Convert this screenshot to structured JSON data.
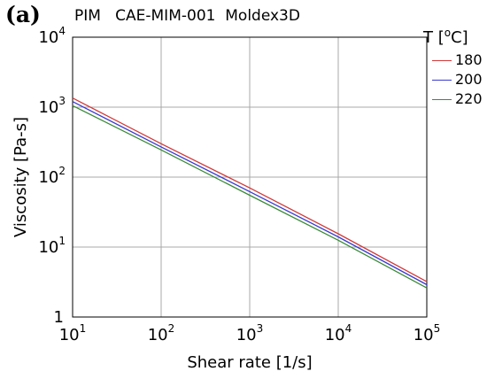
{
  "panel_label": "(a)",
  "chart_title": "PIM   CAE-MIM-001  Moldex3D",
  "chart_data": {
    "type": "line",
    "title": "PIM   CAE-MIM-001  Moldex3D",
    "xlabel": "Shear rate [1/s]",
    "ylabel": "Viscosity [Pa-s]",
    "xscale": "log",
    "yscale": "log",
    "xlim": [
      10,
      100000
    ],
    "ylim": [
      1,
      10000
    ],
    "grid": true,
    "legend_position": "right",
    "legend_title": "T [oC]",
    "legend_title_parts": {
      "prefix": "T [",
      "sup": "o",
      "suffix": "C]"
    },
    "x_ticks": [
      {
        "base": "10",
        "exp": "1"
      },
      {
        "base": "10",
        "exp": "2"
      },
      {
        "base": "10",
        "exp": "3"
      },
      {
        "base": "10",
        "exp": "4"
      },
      {
        "base": "10",
        "exp": "5"
      }
    ],
    "y_ticks": [
      {
        "base": "1",
        "exp": ""
      },
      {
        "base": "10",
        "exp": "1"
      },
      {
        "base": "10",
        "exp": "2"
      },
      {
        "base": "10",
        "exp": "3"
      },
      {
        "base": "10",
        "exp": "4"
      }
    ],
    "series": [
      {
        "name": "180",
        "color": "#d03a3a",
        "x": [
          10,
          100,
          1000,
          10000,
          100000
        ],
        "y": [
          1350,
          300,
          70,
          15.5,
          3.2
        ]
      },
      {
        "name": "200",
        "color": "#3a3ad0",
        "x": [
          10,
          100,
          1000,
          10000,
          100000
        ],
        "y": [
          1200,
          270,
          62,
          14,
          2.9
        ]
      },
      {
        "name": "220",
        "color": "#3a8a3a",
        "x": [
          10,
          100,
          1000,
          10000,
          100000
        ],
        "y": [
          1050,
          245,
          55,
          12.5,
          2.6
        ]
      }
    ]
  }
}
